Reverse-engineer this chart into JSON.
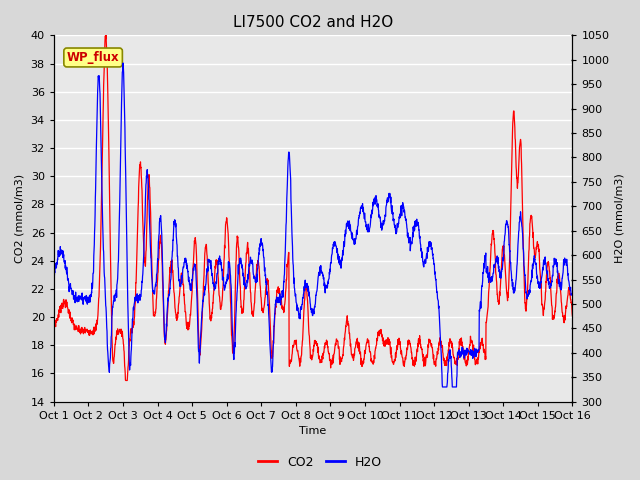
{
  "title": "LI7500 CO2 and H2O",
  "xlabel": "Time",
  "ylabel_left": "CO2 (mmol/m3)",
  "ylabel_right": "H2O (mmol/m3)",
  "ylim_left": [
    14,
    40
  ],
  "ylim_right": [
    300,
    1050
  ],
  "yticks_left": [
    14,
    16,
    18,
    20,
    22,
    24,
    26,
    28,
    30,
    32,
    34,
    36,
    38,
    40
  ],
  "yticks_right": [
    300,
    350,
    400,
    450,
    500,
    550,
    600,
    650,
    700,
    750,
    800,
    850,
    900,
    950,
    1000,
    1050
  ],
  "xtick_labels": [
    "Oct 1",
    "Oct 2",
    "Oct 3",
    "Oct 4",
    "Oct 5",
    "Oct 6",
    "Oct 7",
    "Oct 8",
    "Oct 9",
    "Oct 10",
    "Oct 11",
    "Oct 12",
    "Oct 13",
    "Oct 14",
    "Oct 15",
    "Oct 16"
  ],
  "co2_color": "#ff0000",
  "h2o_color": "#0000ff",
  "fig_facecolor": "#d8d8d8",
  "plot_facecolor": "#e8e8e8",
  "grid_color": "#ffffff",
  "legend_label_co2": "CO2",
  "legend_label_h2o": "H2O",
  "site_label": "WP_flux",
  "site_label_bg": "#ffff88",
  "site_label_border": "#888800",
  "title_fontsize": 11,
  "axis_fontsize": 8,
  "tick_fontsize": 8,
  "n_points": 2000
}
